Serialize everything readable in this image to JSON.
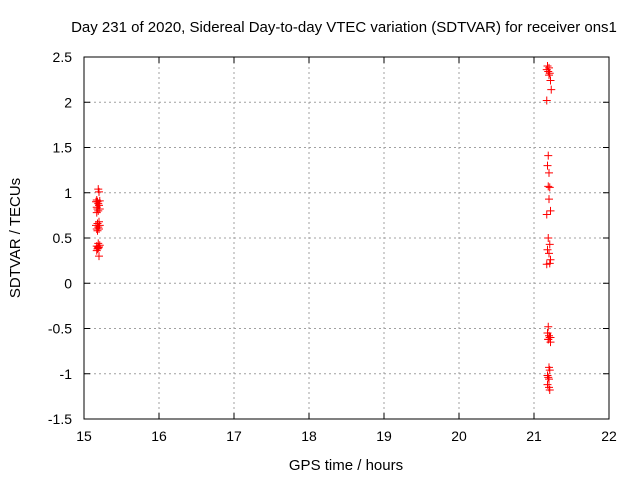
{
  "chart_data": {
    "type": "scatter",
    "title": "Day 231 of 2020, Sidereal Day-to-day VTEC variation (SDTVAR) for receiver ons1",
    "xlabel": "GPS time / hours",
    "ylabel": "SDTVAR / TECUs",
    "xlim": [
      15,
      22
    ],
    "ylim": [
      -1.5,
      2.5
    ],
    "x_ticks": [
      15,
      16,
      17,
      18,
      19,
      20,
      21,
      22
    ],
    "y_ticks": [
      -1.5,
      -1,
      -0.5,
      0,
      0.5,
      1,
      1.5,
      2,
      2.5
    ],
    "x_tick_labels": [
      "15",
      "16",
      "17",
      "18",
      "19",
      "20",
      "21",
      "22"
    ],
    "y_tick_labels": [
      "-1.5",
      "-1",
      "-0.5",
      "0",
      "0.5",
      "1",
      "1.5",
      "2",
      "2.5"
    ],
    "grid": true,
    "marker": "plus",
    "color": "#ff0000",
    "series": [
      {
        "x": [
          15.19,
          15.2,
          15.17,
          15.21,
          15.18,
          15.16,
          15.19,
          15.2,
          15.17,
          15.18,
          15.21,
          15.19,
          15.17,
          15.2,
          15.18,
          15.16,
          15.21,
          15.19,
          15.17,
          15.2,
          15.18,
          15.19,
          15.21,
          15.17,
          15.2,
          15.19,
          15.18,
          15.17,
          15.2,
          15.19,
          21.18,
          21.2,
          21.17,
          21.19,
          21.21,
          21.2,
          21.22,
          21.23,
          21.17,
          21.19,
          21.18,
          21.2,
          21.19,
          21.21,
          21.2,
          21.22,
          21.17,
          21.19,
          21.21,
          21.18,
          21.2,
          21.22,
          21.21,
          21.17,
          21.19,
          21.18,
          21.2,
          21.21,
          21.19,
          21.22,
          21.2,
          21.21,
          21.18,
          21.19,
          21.2,
          21.18,
          21.2,
          21.21,
          21.19,
          21.22
        ],
        "y": [
          1.04,
          1.01,
          0.92,
          0.91,
          0.9,
          0.9,
          0.88,
          0.86,
          0.84,
          0.82,
          0.82,
          0.8,
          0.78,
          0.68,
          0.66,
          0.64,
          0.64,
          0.62,
          0.6,
          0.6,
          0.58,
          0.44,
          0.42,
          0.41,
          0.4,
          0.39,
          0.38,
          0.36,
          0.3,
          0.4,
          2.4,
          2.38,
          2.36,
          2.34,
          2.32,
          2.3,
          2.24,
          2.14,
          2.02,
          1.41,
          1.3,
          1.22,
          1.07,
          1.06,
          0.93,
          0.8,
          0.76,
          0.5,
          0.43,
          0.37,
          0.33,
          0.26,
          0.22,
          0.21,
          -0.48,
          -0.55,
          -0.58,
          -0.6,
          -0.62,
          -0.65,
          -0.93,
          -0.96,
          -1.02,
          -1.04,
          -1.06,
          -1.12,
          -1.15,
          -1.18,
          -0.62,
          -0.6
        ]
      }
    ]
  }
}
